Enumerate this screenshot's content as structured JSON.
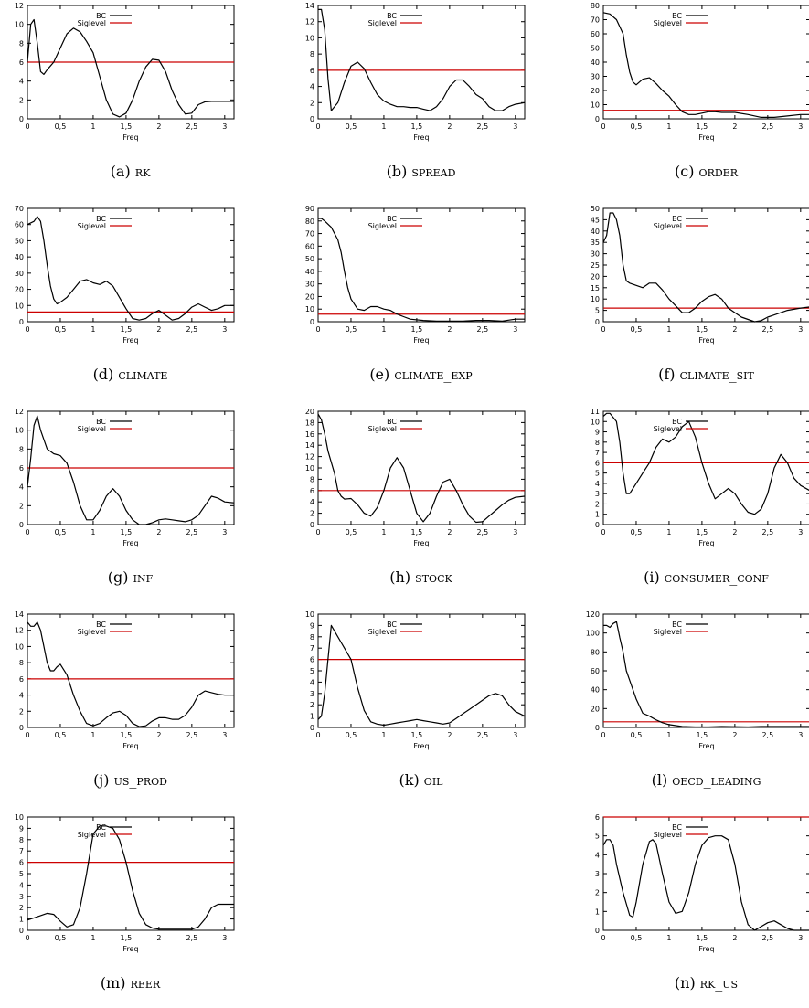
{
  "xlabel": "Freq",
  "legend": {
    "bc": "BC",
    "sig": "Siglevel"
  },
  "colors": {
    "bc": "#000000",
    "sig": "#cc0000"
  },
  "x_ticks": [
    0,
    0.5,
    1,
    1.5,
    2,
    2.5,
    3
  ],
  "x_tick_labels": [
    "0",
    "0,5",
    "1",
    "1,5",
    "2",
    "2,5",
    "3"
  ],
  "xlim": [
    0,
    3.1416
  ],
  "chart_data": [
    {
      "type": "line",
      "id": "a",
      "letter": "(a)",
      "name": "rk",
      "ylim": [
        0,
        12
      ],
      "yticks": [
        0,
        2,
        4,
        6,
        8,
        10,
        12
      ],
      "siglevel": 6,
      "x": [
        0,
        0.05,
        0.1,
        0.15,
        0.2,
        0.25,
        0.3,
        0.4,
        0.5,
        0.6,
        0.7,
        0.8,
        0.9,
        1.0,
        1.1,
        1.2,
        1.3,
        1.4,
        1.5,
        1.6,
        1.7,
        1.8,
        1.9,
        2.0,
        2.1,
        2.2,
        2.3,
        2.4,
        2.5,
        2.6,
        2.7,
        2.8,
        2.9,
        3.0,
        3.14
      ],
      "y": [
        6,
        10,
        10.5,
        8,
        5,
        4.7,
        5.2,
        6,
        7.5,
        9,
        9.6,
        9.2,
        8.2,
        7,
        4.5,
        2,
        0.5,
        0.2,
        0.6,
        2,
        4,
        5.5,
        6.3,
        6.2,
        5,
        3,
        1.5,
        0.5,
        0.6,
        1.5,
        1.8,
        1.85,
        1.85,
        1.85,
        1.85
      ]
    },
    {
      "type": "line",
      "id": "b",
      "letter": "(b)",
      "name": "spread",
      "ylim": [
        0,
        14
      ],
      "yticks": [
        0,
        2,
        4,
        6,
        8,
        10,
        12,
        14
      ],
      "siglevel": 6,
      "x": [
        0,
        0.05,
        0.1,
        0.15,
        0.2,
        0.3,
        0.4,
        0.5,
        0.6,
        0.7,
        0.8,
        0.9,
        1.0,
        1.1,
        1.2,
        1.3,
        1.4,
        1.5,
        1.6,
        1.7,
        1.8,
        1.9,
        2.0,
        2.1,
        2.2,
        2.3,
        2.4,
        2.5,
        2.6,
        2.7,
        2.8,
        2.9,
        3.0,
        3.14
      ],
      "y": [
        13.5,
        13.5,
        11,
        5,
        1,
        2,
        4.5,
        6.5,
        7,
        6.2,
        4.5,
        3,
        2.2,
        1.8,
        1.5,
        1.5,
        1.4,
        1.4,
        1.2,
        1,
        1.5,
        2.5,
        4,
        4.8,
        4.8,
        4,
        3,
        2.5,
        1.5,
        1,
        1,
        1.5,
        1.8,
        2
      ]
    },
    {
      "type": "line",
      "id": "c",
      "letter": "(c)",
      "name": "order",
      "ylim": [
        0,
        80
      ],
      "yticks": [
        0,
        10,
        20,
        30,
        40,
        50,
        60,
        70,
        80
      ],
      "siglevel": 6,
      "x": [
        0,
        0.1,
        0.2,
        0.3,
        0.35,
        0.4,
        0.45,
        0.5,
        0.6,
        0.7,
        0.8,
        0.9,
        1.0,
        1.1,
        1.2,
        1.3,
        1.4,
        1.5,
        1.6,
        1.7,
        1.8,
        1.9,
        2.0,
        2.2,
        2.4,
        2.6,
        2.8,
        3.0,
        3.14
      ],
      "y": [
        75,
        74,
        70,
        60,
        45,
        33,
        26,
        24,
        28,
        29,
        25,
        20,
        16,
        10,
        5,
        3,
        3,
        4,
        5,
        5,
        4.5,
        4.5,
        4.5,
        3,
        1,
        1,
        2,
        3,
        3
      ]
    },
    {
      "type": "line",
      "id": "d",
      "letter": "(d)",
      "name": "climate",
      "ylim": [
        0,
        70
      ],
      "yticks": [
        0,
        10,
        20,
        30,
        40,
        50,
        60,
        70
      ],
      "siglevel": 6,
      "x": [
        0,
        0.1,
        0.15,
        0.2,
        0.25,
        0.3,
        0.35,
        0.4,
        0.45,
        0.5,
        0.6,
        0.7,
        0.8,
        0.9,
        1.0,
        1.1,
        1.2,
        1.3,
        1.4,
        1.5,
        1.6,
        1.7,
        1.8,
        1.9,
        2.0,
        2.1,
        2.2,
        2.3,
        2.4,
        2.5,
        2.6,
        2.7,
        2.8,
        2.9,
        3.0,
        3.14
      ],
      "y": [
        60,
        62,
        65,
        62,
        50,
        35,
        22,
        14,
        11,
        12,
        15,
        20,
        25,
        26,
        24,
        23,
        25,
        22,
        15,
        8,
        2,
        1,
        2,
        5,
        7,
        4,
        1,
        2,
        5,
        9,
        11,
        9,
        7,
        8,
        10,
        10
      ]
    },
    {
      "type": "line",
      "id": "e",
      "letter": "(e)",
      "name": "climate_exp",
      "ylim": [
        0,
        90
      ],
      "yticks": [
        0,
        10,
        20,
        30,
        40,
        50,
        60,
        70,
        80,
        90
      ],
      "siglevel": 6,
      "x": [
        0,
        0.05,
        0.1,
        0.2,
        0.3,
        0.35,
        0.4,
        0.45,
        0.5,
        0.6,
        0.7,
        0.8,
        0.9,
        1.0,
        1.1,
        1.2,
        1.3,
        1.4,
        1.6,
        1.8,
        2.0,
        2.2,
        2.4,
        2.6,
        2.8,
        3.0,
        3.14
      ],
      "y": [
        82,
        82,
        80,
        75,
        65,
        55,
        40,
        27,
        18,
        10,
        9,
        12,
        12,
        10,
        9,
        6,
        4,
        2,
        1,
        0.5,
        0.5,
        0.5,
        1,
        1,
        0.5,
        2,
        2
      ]
    },
    {
      "type": "line",
      "id": "f",
      "letter": "(f)",
      "name": "climate_sit",
      "ylim": [
        0,
        50
      ],
      "yticks": [
        0,
        5,
        10,
        15,
        20,
        25,
        30,
        35,
        40,
        45,
        50
      ],
      "siglevel": 6,
      "x": [
        0,
        0.05,
        0.1,
        0.15,
        0.2,
        0.25,
        0.3,
        0.35,
        0.4,
        0.5,
        0.6,
        0.7,
        0.8,
        0.9,
        1.0,
        1.1,
        1.2,
        1.3,
        1.4,
        1.5,
        1.6,
        1.7,
        1.8,
        1.9,
        2.0,
        2.1,
        2.2,
        2.3,
        2.4,
        2.5,
        2.6,
        2.7,
        2.8,
        3.0,
        3.14
      ],
      "y": [
        35,
        38,
        48,
        48,
        45,
        38,
        25,
        18,
        17,
        16,
        15,
        17,
        17,
        14,
        10,
        7,
        4,
        4,
        6,
        9,
        11,
        12,
        10,
        6,
        4,
        2,
        1,
        0,
        0.5,
        2,
        3,
        4,
        5,
        6,
        6.5
      ]
    },
    {
      "type": "line",
      "id": "g",
      "letter": "(g)",
      "name": "inf",
      "ylim": [
        0,
        12
      ],
      "yticks": [
        0,
        2,
        4,
        6,
        8,
        10,
        12
      ],
      "siglevel": 6,
      "x": [
        0,
        0.05,
        0.1,
        0.15,
        0.2,
        0.3,
        0.4,
        0.5,
        0.6,
        0.7,
        0.8,
        0.9,
        1.0,
        1.1,
        1.2,
        1.3,
        1.4,
        1.5,
        1.6,
        1.7,
        1.8,
        1.9,
        2.0,
        2.1,
        2.2,
        2.3,
        2.4,
        2.5,
        2.6,
        2.7,
        2.8,
        2.9,
        3.0,
        3.14
      ],
      "y": [
        4,
        7,
        10.5,
        11.5,
        10,
        8,
        7.5,
        7.3,
        6.5,
        4.5,
        2,
        0.5,
        0.5,
        1.5,
        3,
        3.8,
        3,
        1.5,
        0.5,
        0,
        0,
        0.2,
        0.5,
        0.6,
        0.5,
        0.4,
        0.3,
        0.5,
        1,
        2,
        3,
        2.8,
        2.4,
        2.3
      ]
    },
    {
      "type": "line",
      "id": "h",
      "letter": "(h)",
      "name": "stock",
      "ylim": [
        0,
        20
      ],
      "yticks": [
        0,
        2,
        4,
        6,
        8,
        10,
        12,
        14,
        16,
        18,
        20
      ],
      "siglevel": 6,
      "x": [
        0,
        0.05,
        0.1,
        0.15,
        0.2,
        0.25,
        0.3,
        0.35,
        0.4,
        0.5,
        0.6,
        0.7,
        0.8,
        0.9,
        1.0,
        1.1,
        1.2,
        1.3,
        1.4,
        1.5,
        1.6,
        1.7,
        1.8,
        1.9,
        2.0,
        2.1,
        2.2,
        2.3,
        2.4,
        2.5,
        2.6,
        2.7,
        2.8,
        2.9,
        3.0,
        3.14
      ],
      "y": [
        19.5,
        18.5,
        16,
        13,
        11,
        9,
        6,
        5,
        4.5,
        4.6,
        3.5,
        2,
        1.5,
        3,
        6,
        10,
        11.8,
        10,
        6,
        2,
        0.5,
        2,
        5,
        7.5,
        8,
        6,
        3.5,
        1.5,
        0.4,
        0.5,
        1.5,
        2.5,
        3.5,
        4.3,
        4.8,
        5
      ]
    },
    {
      "type": "line",
      "id": "i",
      "letter": "(i)",
      "name": "consumer_conf",
      "ylim": [
        0,
        11
      ],
      "yticks": [
        0,
        1,
        2,
        3,
        4,
        5,
        6,
        7,
        8,
        9,
        10,
        11
      ],
      "siglevel": 6,
      "x": [
        0,
        0.05,
        0.1,
        0.2,
        0.25,
        0.3,
        0.35,
        0.4,
        0.5,
        0.6,
        0.7,
        0.8,
        0.9,
        1.0,
        1.1,
        1.2,
        1.3,
        1.4,
        1.5,
        1.6,
        1.7,
        1.8,
        1.9,
        2.0,
        2.1,
        2.2,
        2.3,
        2.4,
        2.5,
        2.6,
        2.7,
        2.8,
        2.9,
        3.0,
        3.14
      ],
      "y": [
        10.5,
        10.8,
        10.8,
        10,
        8,
        5,
        3,
        3,
        4,
        5,
        6,
        7.5,
        8.3,
        8,
        8.5,
        9.5,
        10,
        8.5,
        6,
        4,
        2.5,
        3,
        3.5,
        3,
        2,
        1.2,
        1,
        1.5,
        3,
        5.5,
        6.8,
        6,
        4.5,
        3.8,
        3.3
      ]
    },
    {
      "type": "line",
      "id": "j",
      "letter": "(j)",
      "name": "us_prod",
      "ylim": [
        0,
        14
      ],
      "yticks": [
        0,
        2,
        4,
        6,
        8,
        10,
        12,
        14
      ],
      "siglevel": 6,
      "x": [
        0,
        0.05,
        0.1,
        0.15,
        0.2,
        0.25,
        0.3,
        0.35,
        0.4,
        0.45,
        0.5,
        0.6,
        0.7,
        0.8,
        0.9,
        1.0,
        1.1,
        1.2,
        1.3,
        1.4,
        1.5,
        1.6,
        1.7,
        1.8,
        1.9,
        2.0,
        2.1,
        2.2,
        2.3,
        2.4,
        2.5,
        2.6,
        2.7,
        2.8,
        2.9,
        3.0,
        3.14
      ],
      "y": [
        13,
        12.5,
        12.5,
        13,
        12,
        10,
        8,
        7,
        7,
        7.5,
        7.8,
        6.5,
        4,
        2,
        0.5,
        0.2,
        0.5,
        1.2,
        1.8,
        2,
        1.5,
        0.5,
        0.1,
        0.2,
        0.8,
        1.2,
        1.2,
        1,
        1,
        1.5,
        2.5,
        4,
        4.5,
        4.3,
        4.1,
        4,
        4
      ]
    },
    {
      "type": "line",
      "id": "k",
      "letter": "(k)",
      "name": "oil",
      "ylim": [
        0,
        10
      ],
      "yticks": [
        0,
        1,
        2,
        3,
        4,
        5,
        6,
        7,
        8,
        9,
        10
      ],
      "siglevel": 6,
      "x": [
        0,
        0.05,
        0.1,
        0.15,
        0.2,
        0.25,
        0.3,
        0.35,
        0.4,
        0.5,
        0.6,
        0.7,
        0.8,
        0.9,
        1.0,
        1.1,
        1.2,
        1.3,
        1.4,
        1.5,
        1.6,
        1.7,
        1.8,
        1.9,
        2.0,
        2.1,
        2.2,
        2.3,
        2.4,
        2.5,
        2.6,
        2.7,
        2.8,
        2.9,
        3.0,
        3.14
      ],
      "y": [
        0.7,
        1,
        3,
        6,
        9,
        8.5,
        8,
        7.5,
        7,
        6,
        3.5,
        1.5,
        0.5,
        0.3,
        0.2,
        0.3,
        0.4,
        0.5,
        0.6,
        0.7,
        0.6,
        0.5,
        0.4,
        0.3,
        0.4,
        0.8,
        1.2,
        1.6,
        2,
        2.4,
        2.8,
        3,
        2.8,
        2,
        1.4,
        1
      ]
    },
    {
      "type": "line",
      "id": "l",
      "letter": "(l)",
      "name": "oecd_leading",
      "ylim": [
        0,
        120
      ],
      "yticks": [
        0,
        20,
        40,
        60,
        80,
        100,
        120
      ],
      "siglevel": 6,
      "x": [
        0,
        0.05,
        0.1,
        0.15,
        0.2,
        0.25,
        0.3,
        0.35,
        0.4,
        0.5,
        0.6,
        0.7,
        0.8,
        0.9,
        1.0,
        1.2,
        1.4,
        1.6,
        1.8,
        2.0,
        2.2,
        2.4,
        2.6,
        2.8,
        3.0,
        3.14
      ],
      "y": [
        108,
        108,
        106,
        110,
        112,
        95,
        80,
        60,
        50,
        30,
        15,
        12,
        8,
        5,
        3,
        1,
        0.5,
        0.5,
        1,
        0.8,
        0.5,
        1,
        1,
        1,
        1,
        1
      ]
    },
    {
      "type": "line",
      "id": "m",
      "letter": "(m)",
      "name": "reer",
      "ylim": [
        0,
        10
      ],
      "yticks": [
        0,
        1,
        2,
        3,
        4,
        5,
        6,
        7,
        8,
        9,
        10
      ],
      "siglevel": 6,
      "x": [
        0,
        0.05,
        0.1,
        0.2,
        0.3,
        0.4,
        0.5,
        0.6,
        0.7,
        0.8,
        0.9,
        1.0,
        1.1,
        1.2,
        1.3,
        1.4,
        1.5,
        1.6,
        1.7,
        1.8,
        1.9,
        2.0,
        2.1,
        2.2,
        2.3,
        2.4,
        2.5,
        2.6,
        2.7,
        2.8,
        2.9,
        3.0,
        3.14
      ],
      "y": [
        0.9,
        1,
        1.1,
        1.3,
        1.5,
        1.4,
        0.8,
        0.3,
        0.5,
        2,
        5,
        8.5,
        9.2,
        9.2,
        9,
        8,
        6,
        3.5,
        1.5,
        0.5,
        0.2,
        0.1,
        0.1,
        0.1,
        0.1,
        0.1,
        0.1,
        0.3,
        1,
        2,
        2.3,
        2.3,
        2.3
      ]
    },
    {
      "type": "line",
      "id": "n",
      "letter": "(n)",
      "name": "rk_us",
      "ylim": [
        0,
        6
      ],
      "yticks": [
        0,
        1,
        2,
        3,
        4,
        5,
        6
      ],
      "siglevel": 6,
      "x": [
        0,
        0.05,
        0.1,
        0.15,
        0.2,
        0.3,
        0.4,
        0.45,
        0.5,
        0.6,
        0.7,
        0.75,
        0.8,
        0.9,
        1.0,
        1.1,
        1.2,
        1.3,
        1.4,
        1.5,
        1.6,
        1.7,
        1.8,
        1.9,
        2.0,
        2.1,
        2.2,
        2.3,
        2.4,
        2.5,
        2.6,
        2.7,
        2.8,
        2.9,
        3.0,
        3.14
      ],
      "y": [
        4.5,
        4.8,
        4.8,
        4.5,
        3.5,
        2,
        0.8,
        0.7,
        1.5,
        3.5,
        4.7,
        4.8,
        4.6,
        3,
        1.5,
        0.9,
        1,
        2,
        3.5,
        4.5,
        4.9,
        5,
        5,
        4.8,
        3.5,
        1.5,
        0.3,
        0,
        0.2,
        0.4,
        0.5,
        0.3,
        0.1,
        0,
        0,
        0
      ]
    }
  ]
}
